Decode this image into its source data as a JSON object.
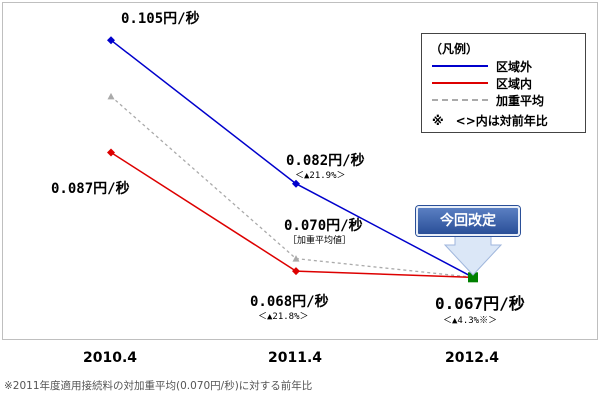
{
  "chart_data": {
    "type": "line",
    "x": [
      "2010.4",
      "2011.4",
      "2012.4"
    ],
    "series": [
      {
        "name": "区域外",
        "color": "#0000cc",
        "style": "solid",
        "marker": "diamond",
        "values": [
          0.105,
          0.082,
          0.067
        ]
      },
      {
        "name": "区域内",
        "color": "#dd0000",
        "style": "solid",
        "marker": "diamond",
        "values": [
          0.087,
          0.068,
          0.067
        ]
      },
      {
        "name": "加重平均",
        "color": "#aaaaaa",
        "style": "dashed",
        "marker": "triangle",
        "values": [
          0.096,
          0.07,
          0.067
        ]
      }
    ],
    "ylim": [
      0.06,
      0.11
    ],
    "grid": false,
    "legend_position": "top-right",
    "final_marker": {
      "shape": "square",
      "color": "#008000"
    }
  },
  "legend": {
    "title": "（凡例）",
    "note": "※　<>内は対前年比"
  },
  "annotations": {
    "outside_2010": "0.105円/秒",
    "inside_2010": "0.087円/秒",
    "outside_2011": "0.082円/秒",
    "outside_2011_change": "＜▲21.9%＞",
    "avg_2011": "0.070円/秒",
    "avg_2011_tag": "［加重平均値］",
    "inside_2011": "0.068円/秒",
    "inside_2011_change": "＜▲21.8%＞",
    "final_2012": "0.067円/秒",
    "final_2012_change": "＜▲4.3%※＞"
  },
  "badge": "今回改定",
  "footnote": "※2011年度適用接続料の対加重平均(0.070円/秒)に対する前年比"
}
